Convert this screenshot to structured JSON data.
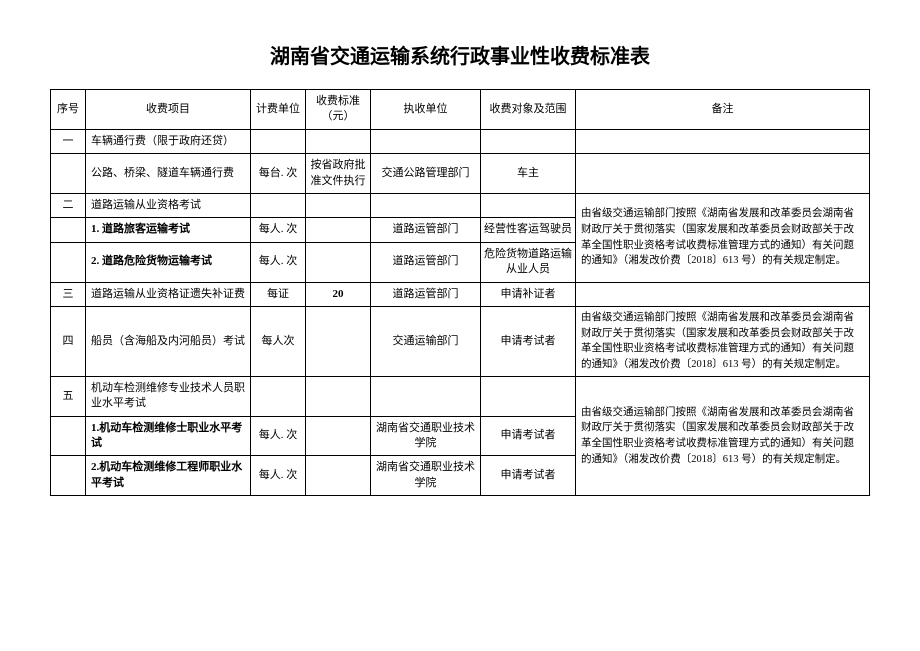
{
  "title": "湖南省交通运输系统行政事业性收费标准表",
  "headers": {
    "seq": "序号",
    "item": "收费项目",
    "unit": "计费单位",
    "price": "收费标准（元）",
    "agency": "执收单位",
    "scope": "收费对象及范围",
    "remark": "备注"
  },
  "rows": [
    {
      "seq": "一",
      "item": "车辆通行费（限于政府还贷）",
      "item_align": "left",
      "unit": "",
      "price": "",
      "agency": "",
      "scope": "",
      "remark": ""
    },
    {
      "seq": "",
      "item": "公路、桥梁、隧道车辆通行费",
      "item_align": "left",
      "unit": "每台. 次",
      "price": "按省政府批准文件执行",
      "agency": "交通公路管理部门",
      "scope": "车主",
      "remark": ""
    },
    {
      "seq": "二",
      "item": "道路运输从业资格考试",
      "item_align": "left",
      "unit": "",
      "price": "",
      "agency": "",
      "scope": "",
      "remark_rowspan": 3,
      "remark": "由省级交通运输部门按照《湖南省发展和改革委员会湖南省财政厅关于贯彻落实（国家发展和改革委员会财政部关于改革全国性职业资格考试收费标准管理方式的通知）有关问题的通知》（湘发改价费〔2018〕613 号）的有关规定制定。"
    },
    {
      "seq": "",
      "item": "1. 道路旅客运输考试",
      "item_align": "left",
      "item_bold": true,
      "unit": "每人. 次",
      "price": "",
      "agency": "道路运管部门",
      "scope": "经营性客运驾驶员",
      "skip_remark": true
    },
    {
      "seq": "",
      "item": "2. 道路危险货物运输考试",
      "item_align": "left",
      "item_bold": true,
      "unit": "每人. 次",
      "price": "",
      "agency": "道路运管部门",
      "scope": "危险货物道路运输从业人员",
      "skip_remark": true
    },
    {
      "seq": "三",
      "item": "道路运输从业资格证遗失补证费",
      "item_align": "left",
      "unit": "每证",
      "price": "20",
      "price_bold": true,
      "agency": "道路运管部门",
      "scope": "申请补证者",
      "remark": ""
    },
    {
      "seq": "四",
      "item": "船员（含海船及内河船员）考试",
      "item_align": "left",
      "unit": "每人次",
      "price": "",
      "agency": "交通运输部门",
      "scope": "申请考试者",
      "remark": "由省级交通运输部门按照《湖南省发展和改革委员会湖南省财政厅关于贯彻落实（国家发展和改革委员会财政部关于改革全国性职业资格考试收费标准管理方式的通知）有关问题的通知》（湘发改价费〔2018〕613 号）的有关规定制定。"
    },
    {
      "seq": "五",
      "item": "机动车检测维修专业技术人员职业水平考试",
      "item_align": "left",
      "unit": "",
      "price": "",
      "agency": "",
      "scope": "",
      "remark_rowspan": 3,
      "remark": "由省级交通运输部门按照《湖南省发展和改革委员会湖南省财政厅关于贯彻落实（国家发展和改革委员会财政部关于改革全国性职业资格考试收费标准管理方式的通知）有关问题的通知》（湘发改价费〔2018〕613 号）的有关规定制定。"
    },
    {
      "seq": "",
      "item": "1.机动车检测维修士职业水平考试",
      "item_align": "left",
      "item_bold": true,
      "unit": "每人. 次",
      "price": "",
      "agency": "湖南省交通职业技术学院",
      "scope": "申请考试者",
      "skip_remark": true
    },
    {
      "seq": "",
      "item": "2.机动车检测维修工程师职业水平考试",
      "item_align": "left",
      "item_bold": true,
      "unit": "每人. 次",
      "price": "",
      "agency": "湖南省交通职业技术学院",
      "scope": "申请考试者",
      "skip_remark": true
    }
  ]
}
